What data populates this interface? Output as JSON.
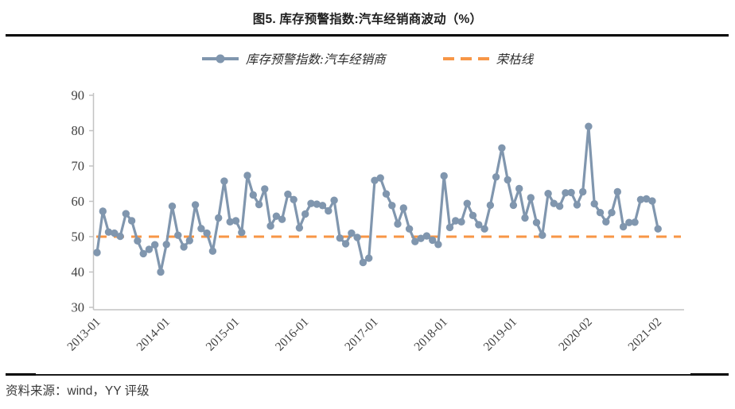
{
  "figure": {
    "title": "图5. 库存预警指数:汽车经销商波动（%）",
    "source_note": "资料来源：wind，YY 评级"
  },
  "legend": {
    "series_label": "库存预警指数:汽车经销商",
    "threshold_label": "荣枯线"
  },
  "colors": {
    "series": "#8096AE",
    "threshold": "#F79646",
    "axis": "#C3C3C3",
    "axis_text": "#3F3F3F"
  },
  "chart_data": {
    "type": "line",
    "title": "图5. 库存预警指数:汽车经销商波动（%）",
    "xlabel": "",
    "ylabel": "",
    "ylim": [
      30,
      90
    ],
    "ytick_step": 10,
    "grid": false,
    "legend_position": "top",
    "threshold": {
      "name": "荣枯线",
      "value": 50
    },
    "x_tick_labels": [
      "2013-01",
      "2014-01",
      "2015-01",
      "2016-01",
      "2017-01",
      "2018-01",
      "2019-01",
      "2020-02",
      "2021-02"
    ],
    "x": [
      "2013-01",
      "2013-02",
      "2013-03",
      "2013-04",
      "2013-05",
      "2013-06",
      "2013-07",
      "2013-08",
      "2013-09",
      "2013-10",
      "2013-11",
      "2013-12",
      "2014-01",
      "2014-02",
      "2014-03",
      "2014-04",
      "2014-05",
      "2014-06",
      "2014-07",
      "2014-08",
      "2014-09",
      "2014-10",
      "2014-11",
      "2014-12",
      "2015-01",
      "2015-02",
      "2015-03",
      "2015-04",
      "2015-05",
      "2015-06",
      "2015-07",
      "2015-08",
      "2015-09",
      "2015-10",
      "2015-11",
      "2015-12",
      "2016-01",
      "2016-02",
      "2016-03",
      "2016-04",
      "2016-05",
      "2016-06",
      "2016-07",
      "2016-08",
      "2016-09",
      "2016-10",
      "2016-11",
      "2016-12",
      "2017-01",
      "2017-02",
      "2017-03",
      "2017-04",
      "2017-05",
      "2017-06",
      "2017-07",
      "2017-08",
      "2017-09",
      "2017-10",
      "2017-11",
      "2017-12",
      "2018-01",
      "2018-02",
      "2018-03",
      "2018-04",
      "2018-05",
      "2018-06",
      "2018-07",
      "2018-08",
      "2018-09",
      "2018-10",
      "2018-11",
      "2018-12",
      "2019-01",
      "2019-02",
      "2019-03",
      "2019-04",
      "2019-05",
      "2019-06",
      "2019-07",
      "2019-08",
      "2019-09",
      "2019-10",
      "2019-11",
      "2019-12",
      "2020-01",
      "2020-02",
      "2020-03",
      "2020-04",
      "2020-05",
      "2020-06",
      "2020-07",
      "2020-08",
      "2020-09",
      "2020-10",
      "2020-11",
      "2020-12",
      "2021-01",
      "2021-02"
    ],
    "series": [
      {
        "name": "库存预警指数:汽车经销商",
        "values": [
          45.5,
          57.2,
          51.3,
          51.0,
          50.1,
          56.5,
          54.5,
          48.8,
          45.2,
          46.4,
          47.7,
          40.0,
          47.8,
          58.6,
          50.4,
          47.1,
          48.9,
          59.0,
          52.3,
          51.0,
          45.9,
          55.3,
          65.7,
          54.2,
          54.5,
          51.2,
          67.3,
          61.8,
          59.1,
          63.5,
          53.0,
          55.8,
          54.9,
          62.0,
          60.5,
          52.5,
          56.4,
          59.4,
          59.2,
          58.8,
          57.3,
          60.3,
          49.6,
          48.0,
          51.0,
          49.8,
          42.7,
          43.9,
          65.9,
          66.6,
          62.1,
          58.8,
          53.6,
          58.1,
          52.2,
          48.6,
          49.5,
          50.2,
          49.0,
          47.8,
          67.2,
          52.6,
          54.5,
          54.2,
          59.4,
          56.0,
          53.4,
          52.2,
          58.9,
          66.9,
          75.1,
          66.1,
          58.9,
          63.6,
          55.3,
          61.0,
          54.0,
          50.4,
          62.2,
          59.4,
          58.6,
          62.4,
          62.5,
          59.0,
          62.7,
          81.2,
          59.3,
          56.8,
          54.2,
          56.8,
          62.7,
          52.8,
          54.0,
          54.1,
          60.5,
          60.7,
          60.1,
          52.2
        ]
      }
    ]
  }
}
